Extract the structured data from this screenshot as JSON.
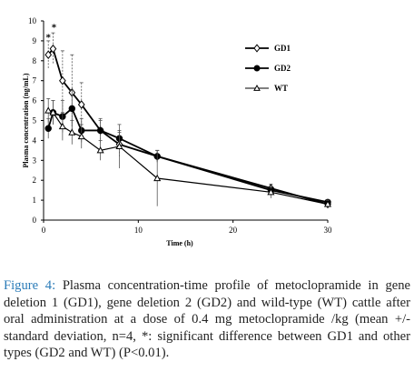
{
  "chart_data": {
    "type": "line",
    "xlabel": "Time (h)",
    "ylabel": "Plasma concentration (ng/mL)",
    "xlim": [
      0,
      30
    ],
    "ylim": [
      0,
      10
    ],
    "xticks": [
      0,
      10,
      20,
      30
    ],
    "yticks": [
      0,
      1,
      2,
      3,
      4,
      5,
      6,
      7,
      8,
      9,
      10
    ],
    "grid": false,
    "legend_position": "top-right",
    "series": [
      {
        "name": "GD1",
        "marker": "diamond",
        "x": [
          0.5,
          1,
          2,
          3,
          4,
          6,
          8,
          12,
          24,
          30
        ],
        "y": [
          8.3,
          8.6,
          7.0,
          6.4,
          5.8,
          4.5,
          3.8,
          3.2,
          1.6,
          0.8
        ],
        "err": [
          0.7,
          0.8,
          1.5,
          1.9,
          1.1,
          0.6,
          0.6,
          0.3,
          0.2,
          0.1
        ]
      },
      {
        "name": "GD2",
        "marker": "circle",
        "x": [
          0.5,
          1,
          2,
          3,
          4,
          6,
          8,
          12,
          24,
          30
        ],
        "y": [
          4.6,
          5.4,
          5.2,
          5.6,
          4.5,
          4.5,
          4.1,
          3.2,
          1.5,
          0.9
        ],
        "err": [
          0.5,
          0.6,
          0.8,
          0.9,
          0.6,
          0.5,
          0.4,
          0.3,
          0.2,
          0.1
        ]
      },
      {
        "name": "WT",
        "marker": "triangle",
        "x": [
          0.5,
          1,
          2,
          3,
          4,
          6,
          8,
          12,
          24,
          30
        ],
        "y": [
          5.5,
          5.4,
          4.7,
          4.4,
          4.2,
          3.5,
          3.7,
          2.1,
          1.4,
          0.8
        ],
        "err": [
          0.6,
          0.6,
          0.7,
          0.6,
          0.6,
          0.5,
          1.1,
          1.4,
          0.3,
          0.2
        ]
      }
    ],
    "annotations": [
      {
        "text": "*",
        "x": 0.5,
        "y": 9.2
      },
      {
        "text": "*",
        "x": 1.1,
        "y": 9.7
      }
    ]
  },
  "caption": {
    "label": "Figure 4:",
    "text": " Plasma concentration-time profile of metoclopramide in gene deletion 1 (GD1), gene deletion 2 (GD2) and wild-type (WT) cattle after oral administration at a dose of 0.4 mg metoclopramide /kg (mean +/- standard deviation, n=4, *: significant difference between GD1 and other types (GD2 and WT) (P<0.01)."
  }
}
